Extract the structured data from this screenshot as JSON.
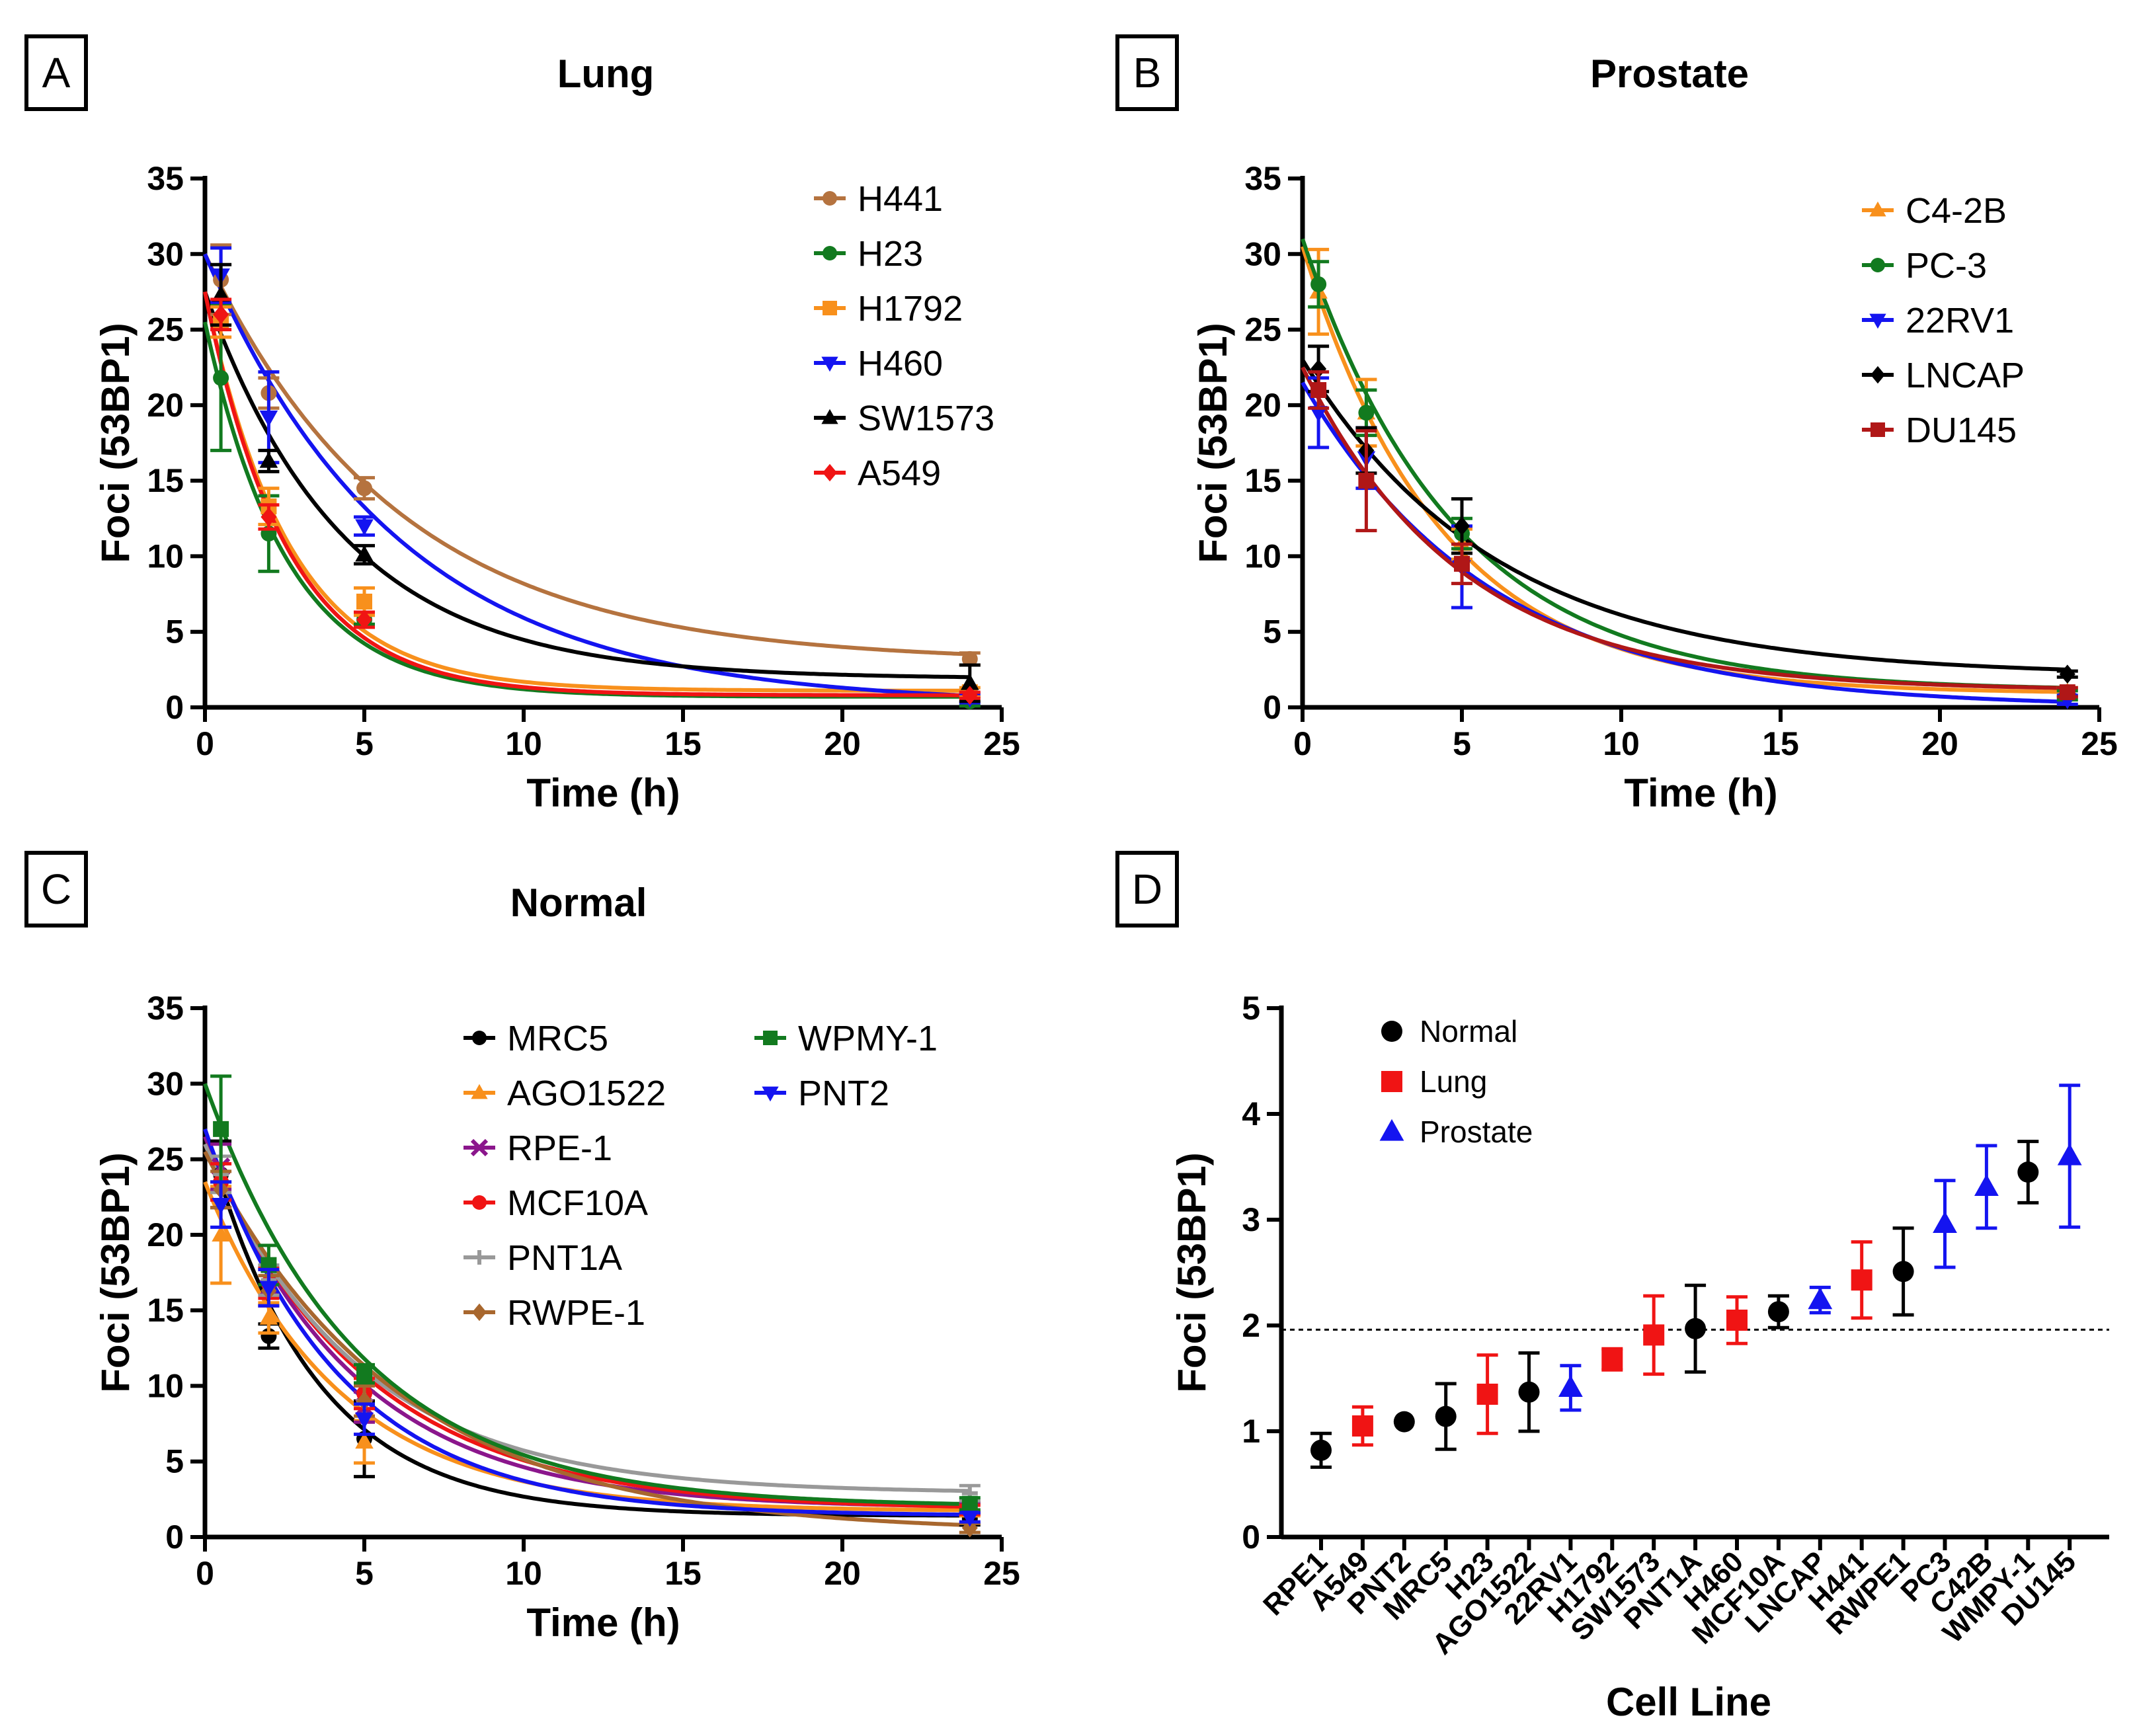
{
  "figure": {
    "panels": [
      {
        "letter": "A",
        "title": "Lung"
      },
      {
        "letter": "B",
        "title": "Prostate"
      },
      {
        "letter": "C",
        "title": "Normal"
      },
      {
        "letter": "D",
        "title": ""
      }
    ]
  },
  "chart_data": [
    {
      "type": "line",
      "panel": "A",
      "title": "Lung",
      "xlabel": "Time (h)",
      "ylabel": "Foci (53BP1)",
      "xlim": [
        0,
        25
      ],
      "ylim": [
        0,
        35
      ],
      "xticks": [
        0,
        5,
        10,
        15,
        20,
        25
      ],
      "yticks": [
        0,
        5,
        10,
        15,
        20,
        25,
        30,
        35
      ],
      "legend_position": "top-right",
      "x": [
        0.5,
        2,
        5,
        24
      ],
      "series": [
        {
          "name": "H441",
          "color": "#b5733f",
          "marker": "circle",
          "values": [
            28.3,
            20.8,
            14.5,
            3.2
          ],
          "errors": [
            2.3,
            1.0,
            0.7,
            0.4
          ],
          "fit": {
            "y0": 30,
            "plateau": 3.0,
            "k": 0.165
          }
        },
        {
          "name": "H23",
          "color": "#127a1f",
          "marker": "circle",
          "values": [
            21.8,
            11.5,
            5.8,
            0.4
          ],
          "errors": [
            4.8,
            2.5,
            0.3,
            0.3
          ],
          "fit": {
            "y0": 25.5,
            "plateau": 0.7,
            "k": 0.39
          }
        },
        {
          "name": "H1792",
          "color": "#f8901c",
          "marker": "square",
          "values": [
            25.5,
            13.3,
            7.0,
            1.0
          ],
          "errors": [
            1.0,
            1.2,
            0.9,
            0.3
          ],
          "fit": {
            "y0": 27.5,
            "plateau": 1.1,
            "k": 0.38
          }
        },
        {
          "name": "H460",
          "color": "#1414f0",
          "marker": "triangle-down",
          "values": [
            28.6,
            19.2,
            12.0,
            0.6
          ],
          "errors": [
            1.8,
            3.0,
            0.6,
            0.3
          ],
          "fit": {
            "y0": 30,
            "plateau": 0.2,
            "k": 0.165
          }
        },
        {
          "name": "SW1573",
          "color": "#000000",
          "marker": "triangle-up",
          "values": [
            27.3,
            16.3,
            10.1,
            1.6
          ],
          "errors": [
            2.0,
            0.7,
            0.6,
            1.2
          ],
          "fit": {
            "y0": 27.5,
            "plateau": 1.9,
            "k": 0.23
          }
        },
        {
          "name": "A549",
          "color": "#f01414",
          "marker": "diamond",
          "values": [
            26.0,
            12.6,
            5.8,
            0.8
          ],
          "errors": [
            1.0,
            0.8,
            0.5,
            0.2
          ],
          "fit": {
            "y0": 27.5,
            "plateau": 0.8,
            "k": 0.39
          }
        }
      ]
    },
    {
      "type": "line",
      "panel": "B",
      "title": "Prostate",
      "xlabel": "Time (h)",
      "ylabel": "Foci (53BP1)",
      "xlim": [
        0,
        25
      ],
      "ylim": [
        0,
        35
      ],
      "xticks": [
        0,
        5,
        10,
        15,
        20,
        25
      ],
      "yticks": [
        0,
        5,
        10,
        15,
        20,
        25,
        30,
        35
      ],
      "legend_position": "top-right",
      "x": [
        0.5,
        2,
        5,
        24
      ],
      "series": [
        {
          "name": "C4-2B",
          "color": "#f8901c",
          "marker": "triangle-up",
          "values": [
            27.5,
            19.5,
            10.8,
            1.0
          ],
          "errors": [
            2.8,
            2.2,
            1.0,
            0.3
          ],
          "fit": {
            "y0": 30.5,
            "plateau": 0.9,
            "k": 0.23
          }
        },
        {
          "name": "PC-3",
          "color": "#127a1f",
          "marker": "circle",
          "values": [
            28.0,
            19.5,
            11.5,
            0.8
          ],
          "errors": [
            1.5,
            1.5,
            1.0,
            0.3
          ],
          "fit": {
            "y0": 31,
            "plateau": 1.1,
            "k": 0.21
          }
        },
        {
          "name": "22RV1",
          "color": "#1414f0",
          "marker": "triangle-down",
          "values": [
            19.5,
            16.5,
            9.3,
            0.5
          ],
          "errors": [
            2.3,
            2.0,
            2.7,
            0.3
          ],
          "fit": {
            "y0": 21.5,
            "plateau": 0.0,
            "k": 0.17
          }
        },
        {
          "name": "LNCAP",
          "color": "#000000",
          "marker": "diamond",
          "values": [
            22.4,
            17.0,
            12.0,
            2.2
          ],
          "errors": [
            1.5,
            1.5,
            1.8,
            0.2
          ],
          "fit": {
            "y0": 23,
            "plateau": 2.1,
            "k": 0.165
          }
        },
        {
          "name": "DU145",
          "color": "#b01717",
          "marker": "square",
          "values": [
            21.0,
            15.0,
            9.5,
            1.0
          ],
          "errors": [
            1.2,
            3.3,
            1.3,
            0.3
          ],
          "fit": {
            "y0": 22.5,
            "plateau": 1.1,
            "k": 0.2
          }
        }
      ]
    },
    {
      "type": "line",
      "panel": "C",
      "title": "Normal",
      "xlabel": "Time (h)",
      "ylabel": "Foci (53BP1)",
      "xlim": [
        0,
        25
      ],
      "ylim": [
        0,
        35
      ],
      "xticks": [
        0,
        5,
        10,
        15,
        20,
        25
      ],
      "yticks": [
        0,
        5,
        10,
        15,
        20,
        25,
        30,
        35
      ],
      "legend_position": "top-right",
      "x": [
        0.5,
        2,
        5,
        24
      ],
      "series": [
        {
          "name": "MRC5",
          "color": "#000000",
          "marker": "circle",
          "values": [
            24.0,
            13.3,
            6.5,
            1.2
          ],
          "errors": [
            2.2,
            0.8,
            2.5,
            0.4
          ],
          "fit": {
            "y0": 27,
            "plateau": 1.4,
            "k": 0.3
          }
        },
        {
          "name": "AGO1522",
          "color": "#f8901c",
          "marker": "triangle-up",
          "values": [
            20.0,
            14.5,
            6.3,
            1.8
          ],
          "errors": [
            3.2,
            1.0,
            1.4,
            0.4
          ],
          "fit": {
            "y0": 23.5,
            "plateau": 1.7,
            "k": 0.24
          }
        },
        {
          "name": "RPE-1",
          "color": "#8b168c",
          "marker": "cross",
          "values": [
            24.5,
            16.5,
            8.6,
            2.0
          ],
          "errors": [
            1.5,
            1.2,
            1.0,
            0.3
          ],
          "fit": {
            "y0": 26.5,
            "plateau": 1.9,
            "k": 0.22
          }
        },
        {
          "name": "MCF10A",
          "color": "#f01414",
          "marker": "circle",
          "values": [
            23.5,
            16.8,
            9.5,
            1.8
          ],
          "errors": [
            1.2,
            1.0,
            1.0,
            0.3
          ],
          "fit": {
            "y0": 26,
            "plateau": 1.8,
            "k": 0.2
          }
        },
        {
          "name": "PNT1A",
          "color": "#999999",
          "marker": "plus",
          "values": [
            24.0,
            17.0,
            9.0,
            2.9
          ],
          "errors": [
            1.2,
            1.0,
            1.0,
            0.5
          ],
          "fit": {
            "y0": 26,
            "plateau": 2.9,
            "k": 0.21
          }
        },
        {
          "name": "RWPE-1",
          "color": "#a8672e",
          "marker": "diamond",
          "values": [
            23.0,
            16.3,
            9.0,
            0.6
          ],
          "errors": [
            1.2,
            1.0,
            1.0,
            0.3
          ],
          "fit": {
            "y0": 25.5,
            "plateau": 0.3,
            "k": 0.165
          }
        },
        {
          "name": "WPMY-1",
          "color": "#127a1f",
          "marker": "square",
          "values": [
            27.0,
            18.0,
            10.8,
            2.2
          ],
          "errors": [
            3.5,
            1.3,
            0.6,
            0.4
          ],
          "fit": {
            "y0": 30,
            "plateau": 2.0,
            "k": 0.21
          }
        },
        {
          "name": "PNT2",
          "color": "#1414f0",
          "marker": "triangle-down",
          "values": [
            22.0,
            16.5,
            7.8,
            1.3
          ],
          "errors": [
            1.5,
            1.2,
            1.0,
            0.3
          ],
          "fit": {
            "y0": 27,
            "plateau": 1.4,
            "k": 0.24
          }
        }
      ]
    },
    {
      "type": "scatter",
      "panel": "D",
      "title": "",
      "xlabel": "Cell Line",
      "ylabel": "Foci (53BP1)",
      "ylim": [
        0,
        5
      ],
      "yticks": [
        0,
        1,
        2,
        3,
        4,
        5
      ],
      "reference_line": 1.96,
      "legend_position": "top-left",
      "legend": [
        {
          "name": "Normal",
          "color": "#000000",
          "marker": "circle"
        },
        {
          "name": "Lung",
          "color": "#f01414",
          "marker": "square"
        },
        {
          "name": "Prostate",
          "color": "#1414f0",
          "marker": "triangle-up"
        }
      ],
      "categories": [
        "RPE1",
        "A549",
        "PNT2",
        "MRC5",
        "H23",
        "AGO1522",
        "22RV1",
        "H1792",
        "SW1573",
        "PNT1A",
        "H460",
        "MCF10A",
        "LNCAP",
        "H441",
        "RWPE1",
        "PC3",
        "C42B",
        "WMPY-1",
        "DU145"
      ],
      "groups": [
        "Normal",
        "Lung",
        "Normal",
        "Normal",
        "Lung",
        "Normal",
        "Prostate",
        "Lung",
        "Lung",
        "Normal",
        "Lung",
        "Normal",
        "Prostate",
        "Lung",
        "Normal",
        "Prostate",
        "Prostate",
        "Normal",
        "Prostate"
      ],
      "values": [
        0.82,
        1.05,
        1.09,
        1.14,
        1.35,
        1.37,
        1.41,
        1.68,
        1.91,
        1.97,
        2.05,
        2.13,
        2.24,
        2.43,
        2.51,
        2.96,
        3.31,
        3.45,
        3.6
      ],
      "errors": [
        0.16,
        0.18,
        0.0,
        0.31,
        0.37,
        0.37,
        0.21,
        0.1,
        0.37,
        0.41,
        0.22,
        0.15,
        0.12,
        0.36,
        0.41,
        0.41,
        0.39,
        0.29,
        0.67
      ]
    }
  ]
}
